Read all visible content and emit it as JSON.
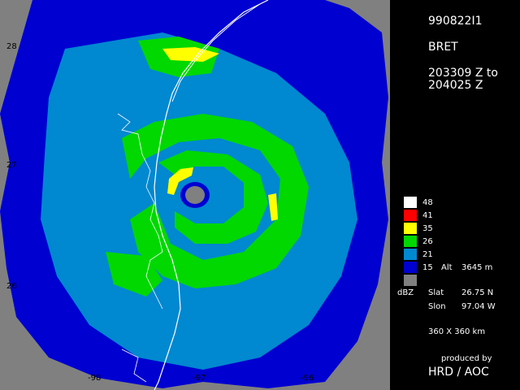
{
  "header": {
    "id": "990822I1",
    "storm": "BRET",
    "time_line1": "203309 Z to",
    "time_line2": "204025 Z"
  },
  "axes": {
    "lat_ticks": [
      "28",
      "27",
      "26"
    ],
    "lon_ticks": [
      "-98",
      "-97",
      "-96"
    ]
  },
  "legend": {
    "items": [
      {
        "value": "48",
        "color": "#ffffff"
      },
      {
        "value": "41",
        "color": "#ff0000"
      },
      {
        "value": "35",
        "color": "#ffff00"
      },
      {
        "value": "26",
        "color": "#00d800"
      },
      {
        "value": "21",
        "color": "#0088d0"
      },
      {
        "value": "15",
        "color": "#0000d0"
      },
      {
        "value": "",
        "color": "#808080"
      }
    ],
    "unit": "dBZ",
    "alt_label": "Alt",
    "alt_value": "3645 m"
  },
  "info": {
    "slat_label": "Slat",
    "slat_value": "26.75 N",
    "slon_label": "Slon",
    "slon_value": "97.04 W",
    "extent": "360 X 360 km"
  },
  "credit": {
    "line1": "produced by",
    "line2": "HRD / AOC"
  },
  "colors": {
    "gray": "#808080",
    "blue": "#0000d0",
    "lightblue": "#0088d0",
    "green": "#00d800",
    "yellow": "#ffff00",
    "red": "#ff0000",
    "white": "#ffffff"
  }
}
